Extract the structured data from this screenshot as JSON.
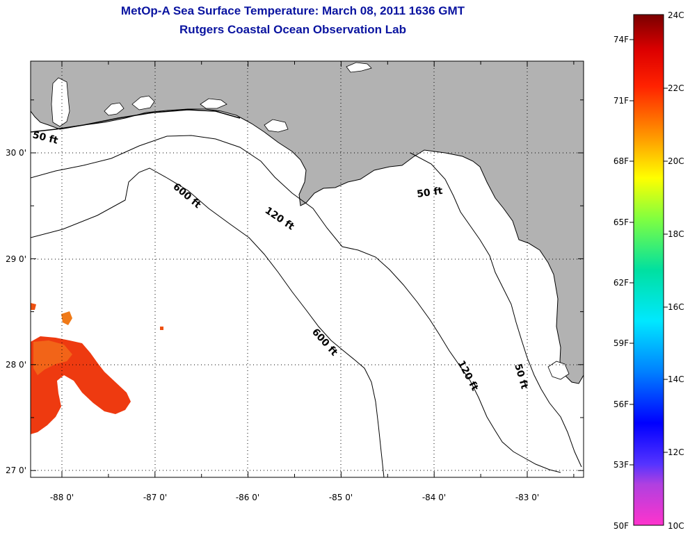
{
  "title": "MetOp-A Sea Surface Temperature:  March 08, 2011 1636 GMT",
  "subtitle": "Rutgers Coastal Ocean Observation Lab",
  "map": {
    "latitude_labels": [
      "30 0'",
      "29 0'",
      "28 0'",
      "27 0'"
    ],
    "longitude_labels": [
      "-88 0'",
      "-87 0'",
      "-86 0'",
      "-85 0'",
      "-84 0'",
      "-83 0'"
    ],
    "contour_labels": {
      "c50_west": "50 ft",
      "c50_east": "50 ft",
      "c50_south": "50 ft",
      "c120_north": "120 ft",
      "c120_south": "120 ft",
      "c600_north": "600 ft",
      "c600_south": "600 ft"
    },
    "colors": {
      "land": "#b2b2b2",
      "ocean": "#ffffff",
      "sst_patch": "#ee3a10"
    }
  },
  "colorbar": {
    "fahrenheit_labels": [
      "74F",
      "71F",
      "68F",
      "65F",
      "62F",
      "59F",
      "56F",
      "53F",
      "50F"
    ],
    "celsius_labels": [
      "24C",
      "22C",
      "20C",
      "18C",
      "16C",
      "14C",
      "12C",
      "10C"
    ]
  }
}
